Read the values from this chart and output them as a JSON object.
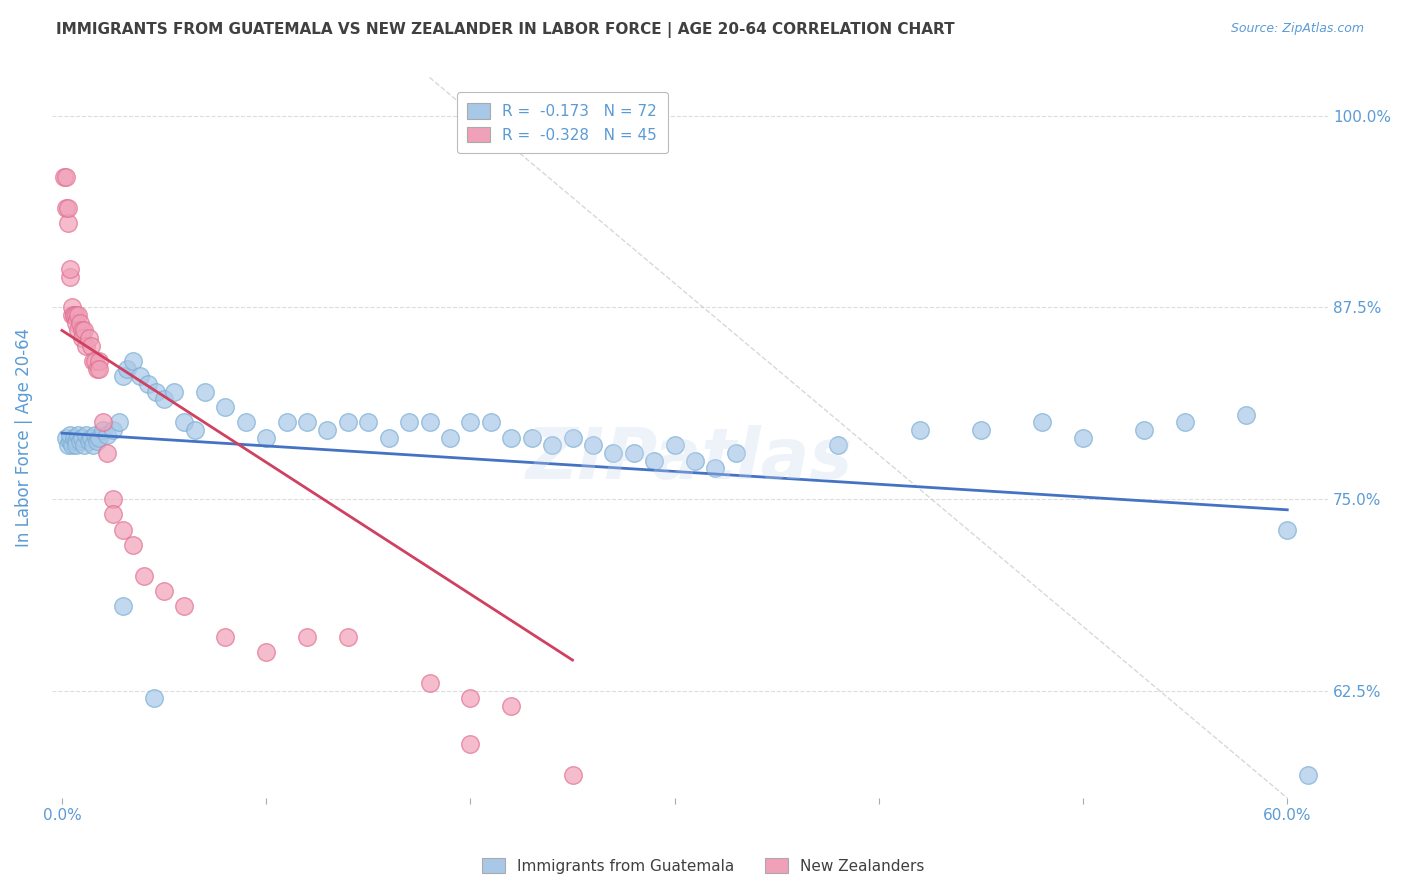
{
  "title": "IMMIGRANTS FROM GUATEMALA VS NEW ZEALANDER IN LABOR FORCE | AGE 20-64 CORRELATION CHART",
  "source": "Source: ZipAtlas.com",
  "ylabel": "In Labor Force | Age 20-64",
  "xlim": [
    -0.005,
    0.62
  ],
  "ylim": [
    0.555,
    1.025
  ],
  "xticks": [
    0.0,
    0.1,
    0.2,
    0.3,
    0.4,
    0.5,
    0.6
  ],
  "xticklabels_show": [
    "0.0%",
    "",
    "",
    "",
    "",
    "",
    "60.0%"
  ],
  "yticks": [
    0.625,
    0.75,
    0.875,
    1.0
  ],
  "yticklabels": [
    "62.5%",
    "75.0%",
    "87.5%",
    "100.0%"
  ],
  "blue_color": "#a8c8e8",
  "pink_color": "#f0a0b8",
  "blue_edge_color": "#7bafd4",
  "pink_edge_color": "#e07090",
  "blue_line_color": "#4472c4",
  "pink_line_color": "#d04060",
  "tick_label_color": "#5b9bd5",
  "title_color": "#404040",
  "watermark": "ZIPatlas",
  "legend_label_blue": "R =  -0.173   N = 72",
  "legend_label_pink": "R =  -0.328   N = 45",
  "blue_scatter_x": [
    0.002,
    0.003,
    0.004,
    0.004,
    0.005,
    0.006,
    0.007,
    0.007,
    0.008,
    0.009,
    0.01,
    0.011,
    0.012,
    0.013,
    0.014,
    0.015,
    0.016,
    0.017,
    0.018,
    0.02,
    0.022,
    0.025,
    0.028,
    0.03,
    0.032,
    0.035,
    0.038,
    0.042,
    0.046,
    0.05,
    0.055,
    0.06,
    0.065,
    0.07,
    0.08,
    0.09,
    0.1,
    0.11,
    0.12,
    0.13,
    0.14,
    0.15,
    0.16,
    0.17,
    0.18,
    0.19,
    0.2,
    0.21,
    0.22,
    0.23,
    0.24,
    0.25,
    0.26,
    0.27,
    0.28,
    0.29,
    0.3,
    0.31,
    0.32,
    0.33,
    0.38,
    0.42,
    0.45,
    0.48,
    0.5,
    0.53,
    0.55,
    0.58,
    0.6,
    0.61,
    0.03,
    0.045
  ],
  "blue_scatter_y": [
    0.79,
    0.785,
    0.788,
    0.792,
    0.785,
    0.79,
    0.788,
    0.785,
    0.792,
    0.788,
    0.79,
    0.785,
    0.792,
    0.788,
    0.79,
    0.785,
    0.792,
    0.788,
    0.79,
    0.795,
    0.792,
    0.795,
    0.8,
    0.83,
    0.835,
    0.84,
    0.83,
    0.825,
    0.82,
    0.815,
    0.82,
    0.8,
    0.795,
    0.82,
    0.81,
    0.8,
    0.79,
    0.8,
    0.8,
    0.795,
    0.8,
    0.8,
    0.79,
    0.8,
    0.8,
    0.79,
    0.8,
    0.8,
    0.79,
    0.79,
    0.785,
    0.79,
    0.785,
    0.78,
    0.78,
    0.775,
    0.785,
    0.775,
    0.77,
    0.78,
    0.785,
    0.795,
    0.795,
    0.8,
    0.79,
    0.795,
    0.8,
    0.805,
    0.73,
    0.57,
    0.68,
    0.62
  ],
  "pink_scatter_x": [
    0.001,
    0.002,
    0.002,
    0.003,
    0.003,
    0.004,
    0.004,
    0.005,
    0.005,
    0.006,
    0.006,
    0.007,
    0.007,
    0.008,
    0.008,
    0.009,
    0.01,
    0.01,
    0.011,
    0.012,
    0.013,
    0.014,
    0.015,
    0.016,
    0.017,
    0.018,
    0.02,
    0.022,
    0.025,
    0.03,
    0.035,
    0.04,
    0.05,
    0.06,
    0.08,
    0.1,
    0.12,
    0.14,
    0.18,
    0.2,
    0.22,
    0.025,
    0.018,
    0.2,
    0.25
  ],
  "pink_scatter_y": [
    0.96,
    0.96,
    0.94,
    0.93,
    0.94,
    0.895,
    0.9,
    0.87,
    0.875,
    0.87,
    0.87,
    0.87,
    0.865,
    0.87,
    0.86,
    0.865,
    0.86,
    0.855,
    0.86,
    0.85,
    0.855,
    0.85,
    0.84,
    0.84,
    0.835,
    0.84,
    0.8,
    0.78,
    0.75,
    0.73,
    0.72,
    0.7,
    0.69,
    0.68,
    0.66,
    0.65,
    0.66,
    0.66,
    0.63,
    0.62,
    0.615,
    0.74,
    0.835,
    0.59,
    0.57
  ],
  "blue_line_x": [
    0.0,
    0.6
  ],
  "blue_line_y": [
    0.793,
    0.743
  ],
  "pink_line_x": [
    0.0,
    0.25
  ],
  "pink_line_y": [
    0.86,
    0.645
  ],
  "diag_line_x": [
    0.18,
    0.6
  ],
  "diag_line_y": [
    1.025,
    0.555
  ],
  "background_color": "#ffffff",
  "grid_color": "#dddddd",
  "figsize": [
    14.06,
    8.92
  ],
  "dpi": 100
}
